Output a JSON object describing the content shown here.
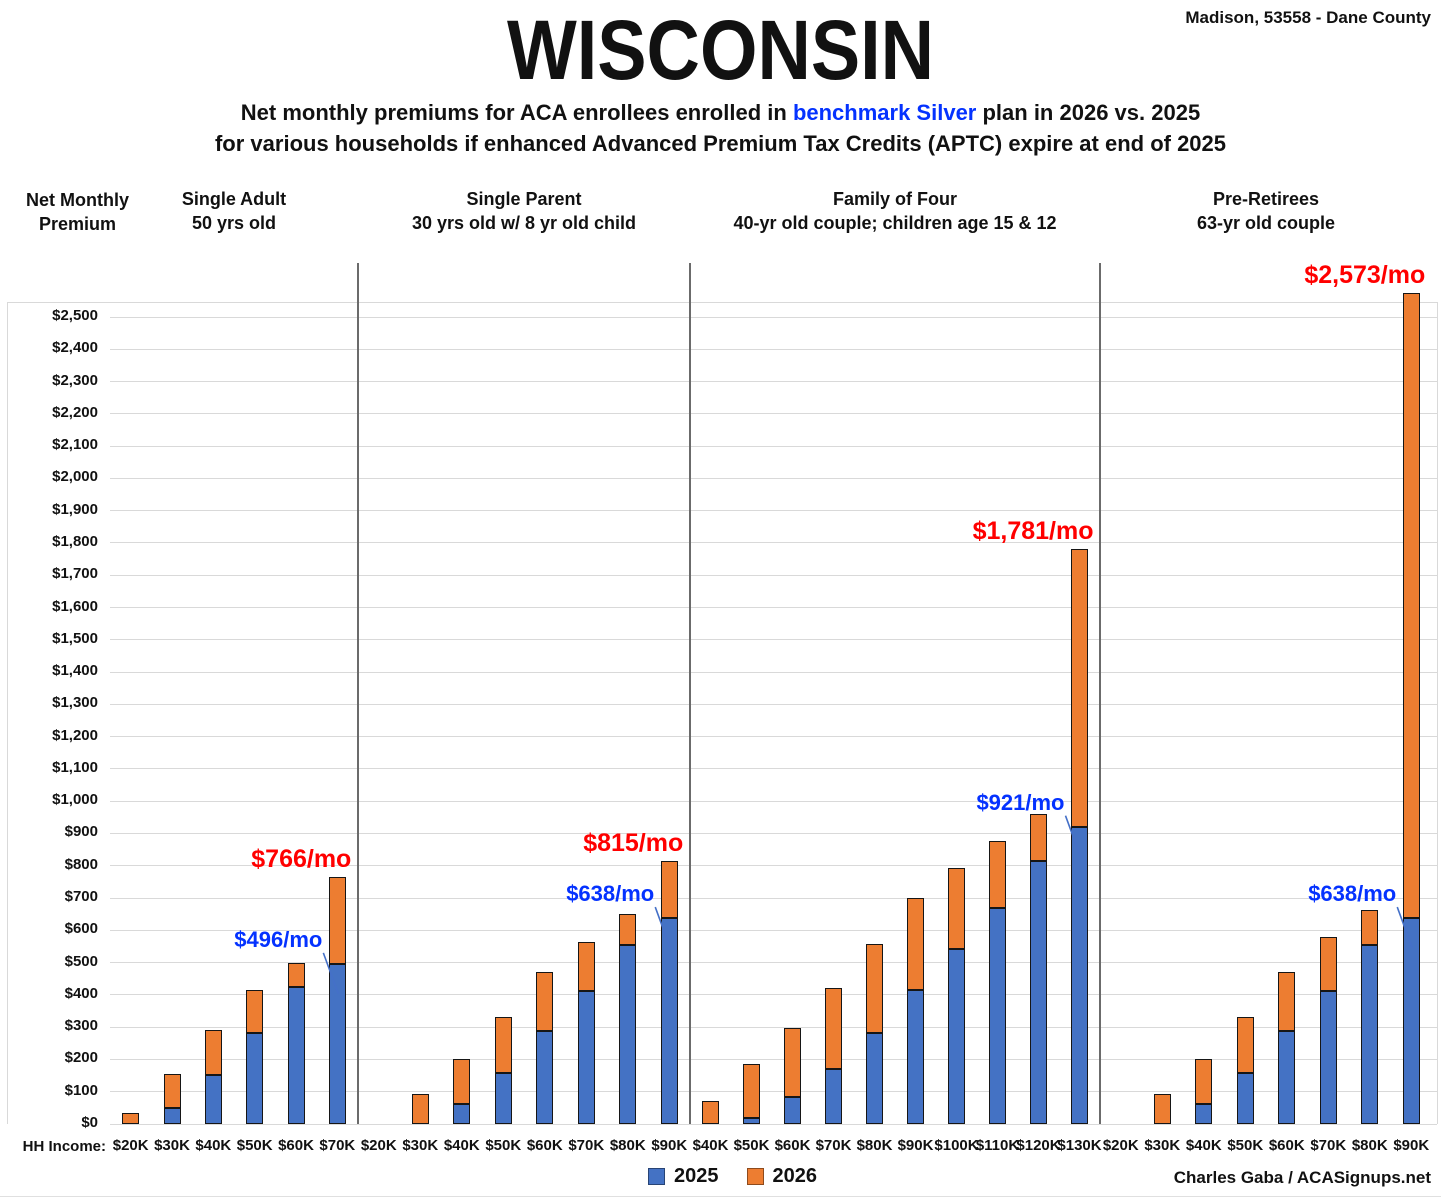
{
  "header": {
    "location": "Madison, 53558 - Dane County",
    "title": "WISCONSIN",
    "subtitle": {
      "line1_pre": "Net monthly premiums for ACA enrollees enrolled in ",
      "line1_highlight": "benchmark Silver",
      "line1_post": " plan in 2026 vs. 2025",
      "line2": "for various households if enhanced Advanced Premium Tax Credits (APTC) expire at end of 2025"
    }
  },
  "axis": {
    "y_title": [
      "Net Monthly",
      "Premium"
    ],
    "x_label": "HH Income:"
  },
  "legend": {
    "items": [
      {
        "label": "2025",
        "color": "#4472C4"
      },
      {
        "label": "2026",
        "color": "#ED7D31"
      }
    ]
  },
  "footer": {
    "credit": "Charles Gaba / ACASignups.net"
  },
  "colors": {
    "bar_2025": "#4472C4",
    "bar_2026": "#ED7D31",
    "label_2025": "#0432FF",
    "label_2026": "#FF0000",
    "highlight_blue": "#0432FF",
    "callout_line": "#4470C8",
    "gridline": "#d9d9d9",
    "divider": "#6b6b6b"
  },
  "chart_data": {
    "type": "bar",
    "stacked": true,
    "series_names": [
      "2025",
      "2026"
    ],
    "ylabel": "Net Monthly Premium",
    "xlabel": "HH Income",
    "ylim": [
      0,
      2500
    ],
    "ytick_step": 100,
    "grid": true,
    "legend_position": "bottom",
    "groups": [
      {
        "title": "Single Adult",
        "subtitle": "50 yrs old",
        "categories": [
          "$20K",
          "$30K",
          "$40K",
          "$50K",
          "$60K",
          "$70K"
        ],
        "values_2025": [
          0,
          50,
          153,
          281,
          423,
          496
        ],
        "values_2026": [
          35,
          155,
          290,
          415,
          500,
          766
        ],
        "labels": [
          {
            "category": "$70K",
            "series": "2025",
            "text": "$496/mo"
          },
          {
            "category": "$70K",
            "series": "2026",
            "text": "$766/mo"
          }
        ]
      },
      {
        "title": "Single Parent",
        "subtitle": "30 yrs old w/ 8 yr old child",
        "categories": [
          "$20K",
          "$30K",
          "$40K",
          "$50K",
          "$60K",
          "$70K",
          "$80K",
          "$90K"
        ],
        "values_2025": [
          null,
          0,
          62,
          158,
          287,
          412,
          553,
          638
        ],
        "values_2026": [
          null,
          93,
          202,
          332,
          472,
          565,
          650,
          815
        ],
        "labels": [
          {
            "category": "$90K",
            "series": "2025",
            "text": "$638/mo"
          },
          {
            "category": "$90K",
            "series": "2026",
            "text": "$815/mo"
          }
        ]
      },
      {
        "title": "Family of Four",
        "subtitle": "40-yr old couple; children age 15 & 12",
        "categories": [
          "$40K",
          "$50K",
          "$60K",
          "$70K",
          "$80K",
          "$90K",
          "$100K",
          "$110K",
          "$120K",
          "$130K"
        ],
        "values_2025": [
          0,
          20,
          84,
          171,
          283,
          415,
          541,
          670,
          815,
          921
        ],
        "values_2026": [
          70,
          185,
          298,
          422,
          557,
          700,
          793,
          876,
          960,
          1781
        ],
        "labels": [
          {
            "category": "$130K",
            "series": "2025",
            "text": "$921/mo"
          },
          {
            "category": "$130K",
            "series": "2026",
            "text": "$1,781/mo"
          }
        ]
      },
      {
        "title": "Pre-Retirees",
        "subtitle": "63-yr old couple",
        "categories": [
          "$20K",
          "$30K",
          "$40K",
          "$50K",
          "$60K",
          "$70K",
          "$80K",
          "$90K"
        ],
        "values_2025": [
          null,
          0,
          62,
          158,
          287,
          412,
          553,
          638
        ],
        "values_2026": [
          null,
          93,
          202,
          332,
          472,
          578,
          662,
          2573
        ],
        "labels": [
          {
            "category": "$90K",
            "series": "2025",
            "text": "$638/mo"
          },
          {
            "category": "$90K",
            "series": "2026",
            "text": "$2,573/mo"
          }
        ]
      }
    ]
  }
}
